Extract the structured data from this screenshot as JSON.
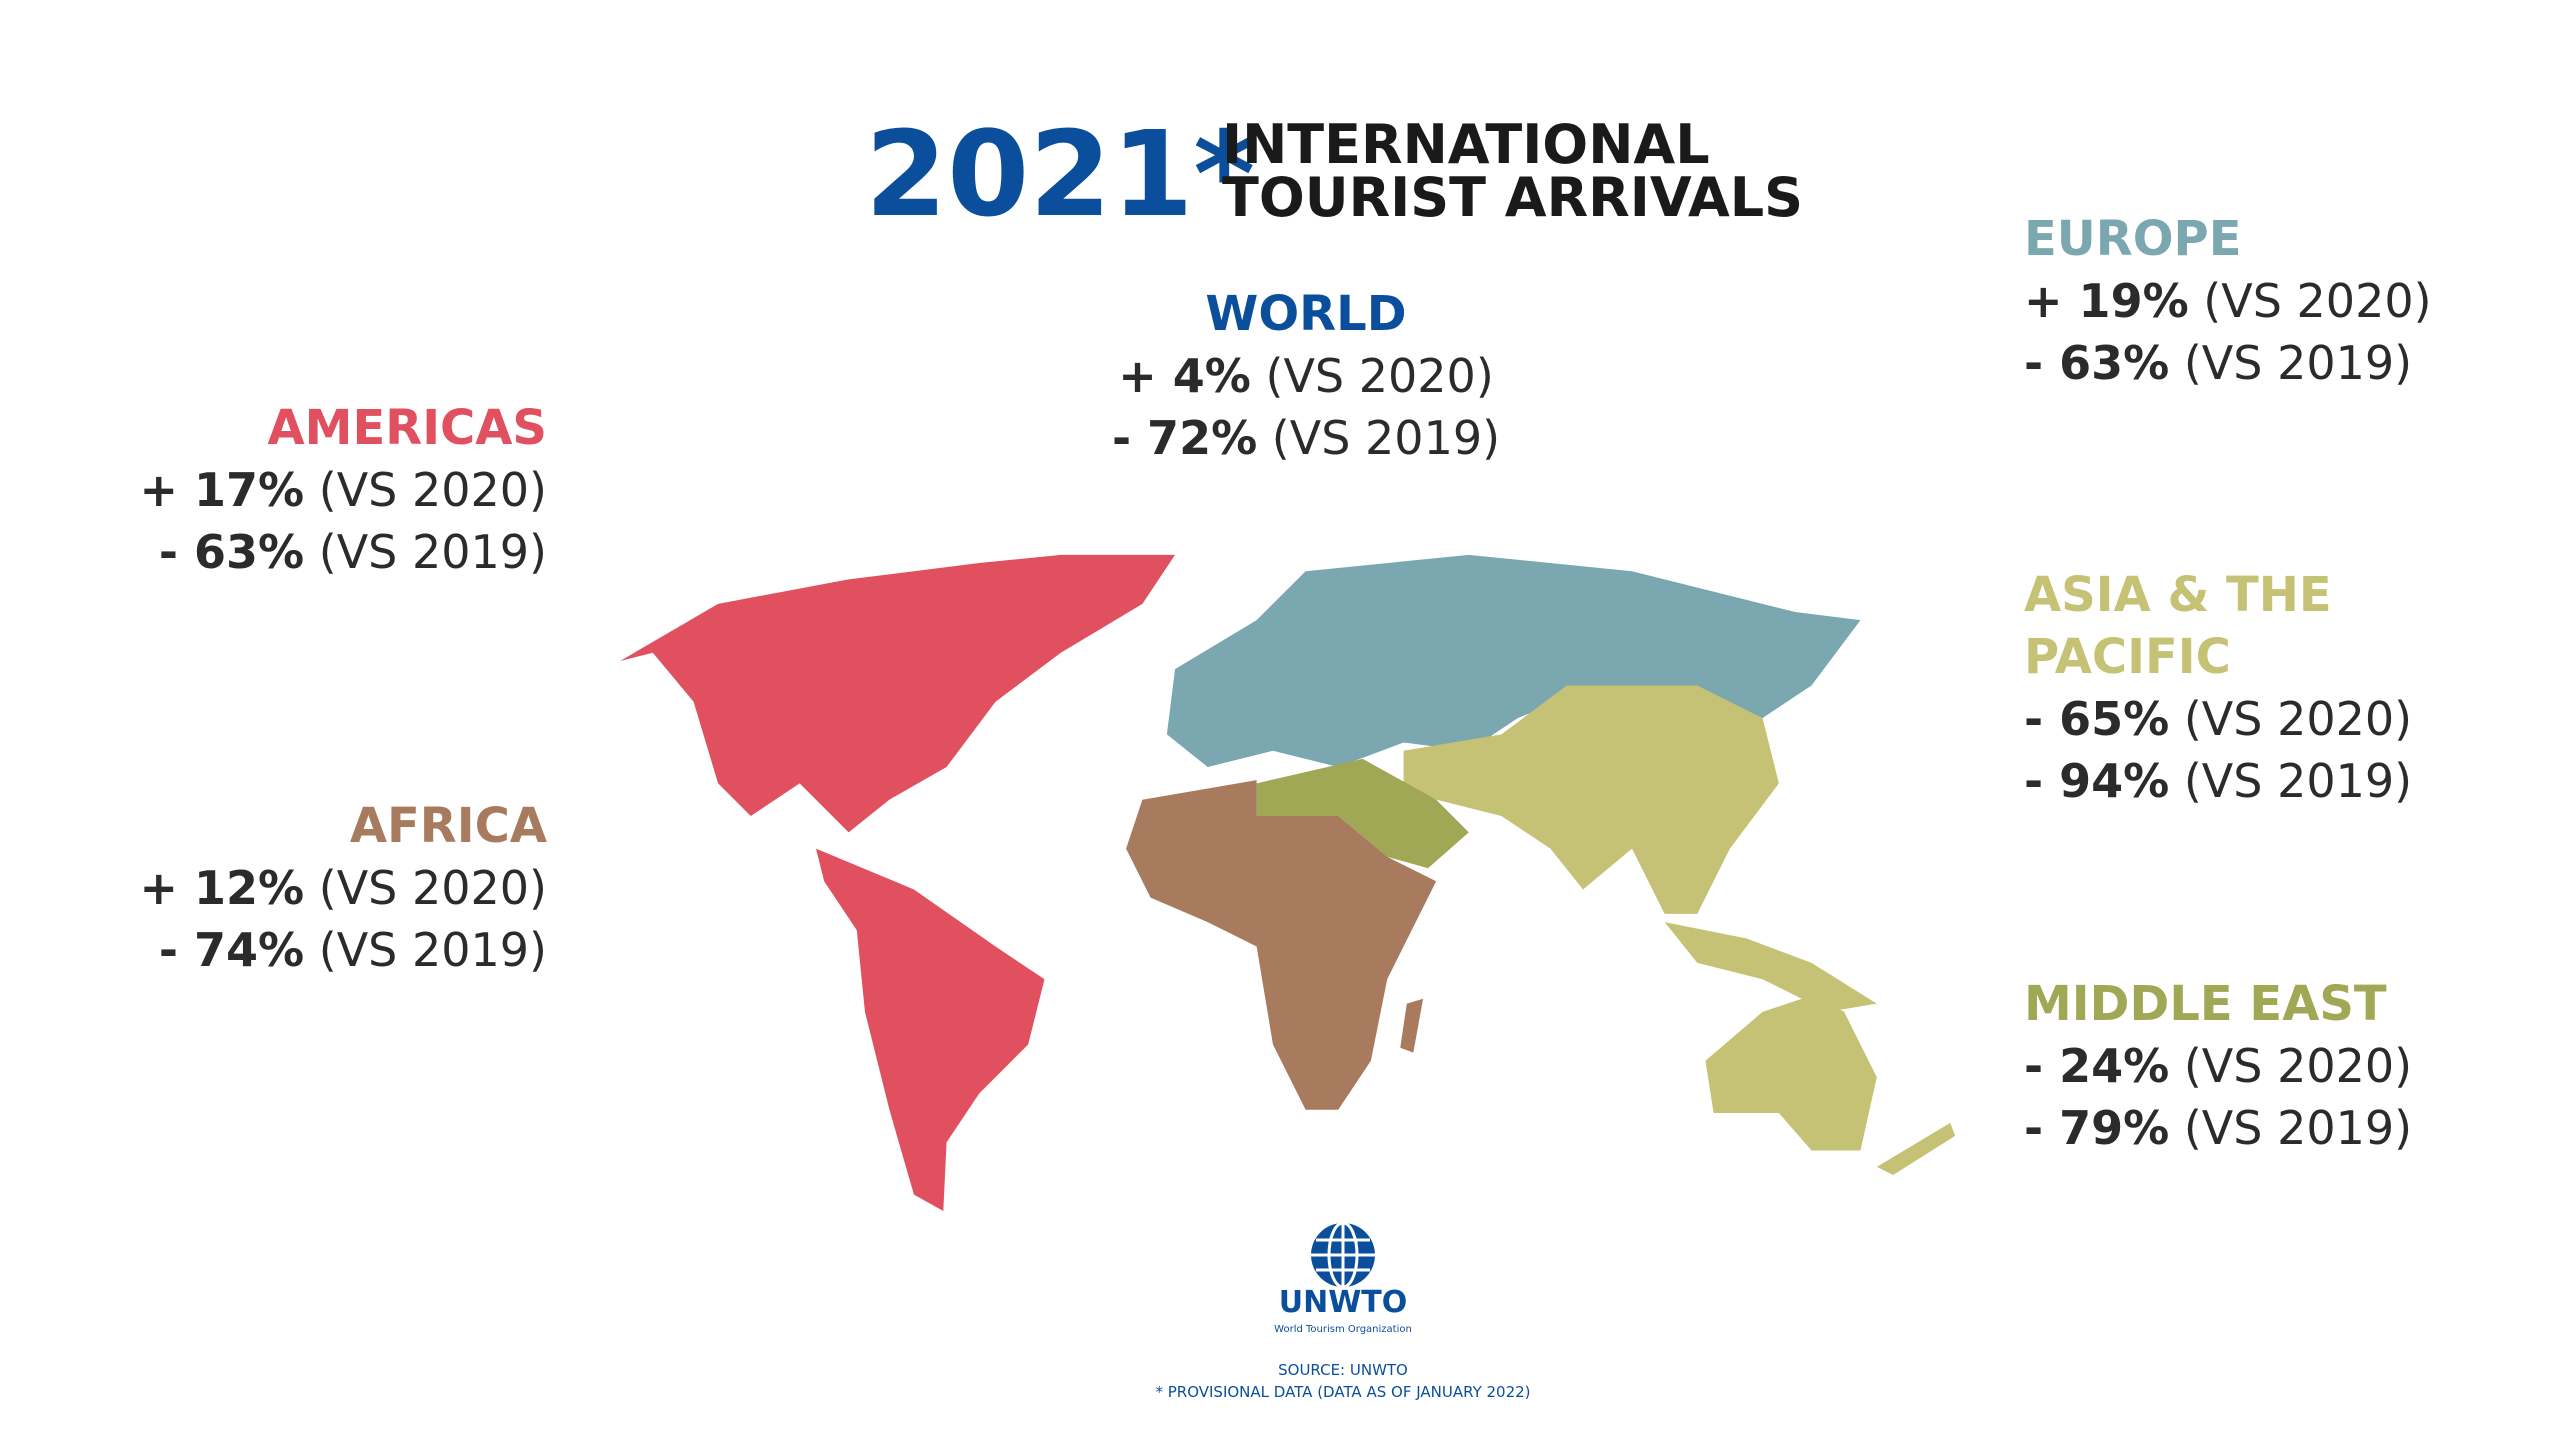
{
  "header": {
    "year": "2021*",
    "title_lines": [
      "INTERNATIONAL",
      "TOURIST ARRIVALS"
    ]
  },
  "regions": [
    {
      "name_lines": [
        "WORLD"
      ],
      "color": "#0b4f9c",
      "lines": [
        {
          "change": "+ 4%",
          "basis": "(VS 2020)"
        },
        {
          "change": "- 72%",
          "basis": "(VS 2019)"
        }
      ]
    },
    {
      "name_lines": [
        "AMERICAS"
      ],
      "color": "#e0505f",
      "lines": [
        {
          "change": "+ 17%",
          "basis": "(VS 2020)"
        },
        {
          "change": "- 63%",
          "basis": "(VS 2019)"
        }
      ]
    },
    {
      "name_lines": [
        "AFRICA"
      ],
      "color": "#a87b5e",
      "lines": [
        {
          "change": "+ 12%",
          "basis": "(VS 2020)"
        },
        {
          "change": "- 74%",
          "basis": "(VS 2019)"
        }
      ]
    },
    {
      "name_lines": [
        "EUROPE"
      ],
      "color": "#7ba7b0",
      "lines": [
        {
          "change": "+ 19%",
          "basis": "(VS 2020)"
        },
        {
          "change": "- 63%",
          "basis": "(VS 2019)"
        }
      ]
    },
    {
      "name_lines": [
        "ASIA & THE",
        "PACIFIC"
      ],
      "color": "#c6c275",
      "lines": [
        {
          "change": "- 65%",
          "basis": "(VS 2020)"
        },
        {
          "change": "- 94%",
          "basis": "(VS 2019)"
        }
      ]
    },
    {
      "name_lines": [
        "MIDDLE EAST"
      ],
      "color": "#a0a856",
      "lines": [
        {
          "change": "- 24%",
          "basis": "(VS 2020)"
        },
        {
          "change": "- 79%",
          "basis": "(VS 2019)"
        }
      ]
    }
  ],
  "logo": {
    "name": "UNWTO",
    "subtitle": "World Tourism Organization"
  },
  "footer": {
    "source": "SOURCE: UNWTO",
    "note": "* PROVISIONAL DATA (DATA AS OF JANUARY 2022)"
  }
}
